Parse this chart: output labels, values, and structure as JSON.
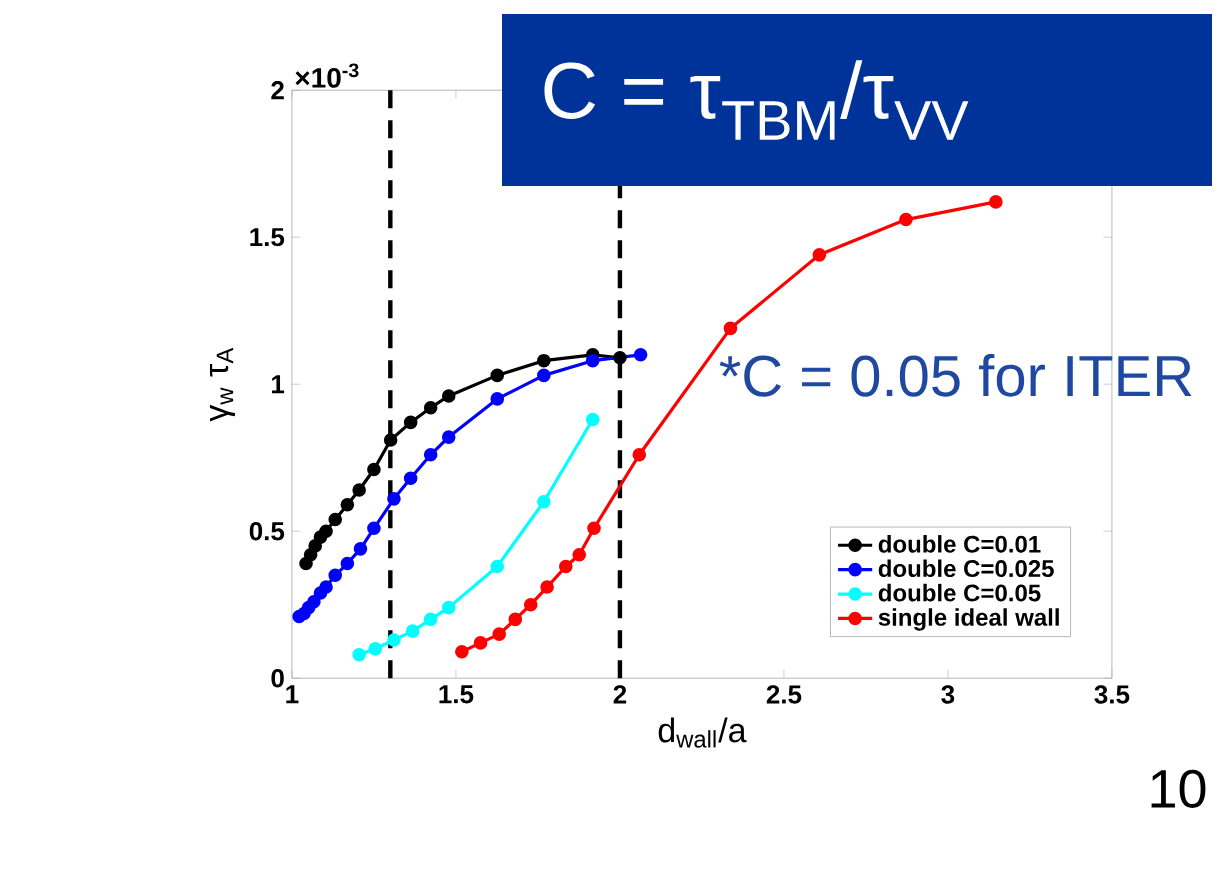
{
  "chart_data": {
    "type": "line",
    "title": "C = τ$_{TBM}$/τ$_{VV}$",
    "xlabel": "d$_{wall}$/a",
    "ylabel": "γ$_{w}$ τ$_{A}$",
    "annotations": [
      "×10$^{-3}$",
      "*C = 0.05 for ITER",
      "10"
    ],
    "xlim": [
      1,
      3.5
    ],
    "xticks": [
      1,
      1.5,
      2,
      2.5,
      3,
      3.5
    ],
    "ylim": [
      0,
      2
    ],
    "yticks": [
      0,
      0.5,
      1,
      1.5,
      2
    ],
    "grid": false,
    "legend": "bottom right",
    "marker": "circle",
    "line_style": "solid",
    "ref_lines": [
      {
        "axis": "x",
        "value": 1.3,
        "color": "#000000",
        "line_style": "dashed"
      },
      {
        "axis": "x",
        "value": 2,
        "color": "#000000",
        "line_style": "dashed"
      }
    ],
    "series": [
      {
        "name": "double C=0.01",
        "color": "#000000",
        "x": [
          1.043,
          1.057,
          1.071,
          1.087,
          1.104,
          1.132,
          1.169,
          1.205,
          1.25,
          1.301,
          1.362,
          1.423,
          1.478,
          1.626,
          1.768,
          1.917,
          2.0
        ],
        "values": [
          0.39,
          0.42,
          0.45,
          0.48,
          0.5,
          0.54,
          0.59,
          0.64,
          0.71,
          0.81,
          0.87,
          0.92,
          0.96,
          1.03,
          1.08,
          1.1,
          1.09
        ]
      },
      {
        "name": "double C=0.025",
        "color": "#0000ff",
        "x": [
          1.022,
          1.037,
          1.051,
          1.067,
          1.087,
          1.104,
          1.132,
          1.169,
          1.209,
          1.25,
          1.311,
          1.362,
          1.423,
          1.478,
          1.626,
          1.768,
          1.917,
          2.063
        ],
        "values": [
          0.21,
          0.22,
          0.24,
          0.26,
          0.29,
          0.31,
          0.35,
          0.39,
          0.44,
          0.51,
          0.61,
          0.68,
          0.76,
          0.82,
          0.95,
          1.03,
          1.08,
          1.1
        ]
      },
      {
        "name": "double C=0.05",
        "color": "#00ffff",
        "x": [
          1.205,
          1.254,
          1.311,
          1.368,
          1.423,
          1.478,
          1.626,
          1.768,
          1.917
        ],
        "values": [
          0.08,
          0.1,
          0.13,
          0.16,
          0.2,
          0.24,
          0.38,
          0.6,
          0.88
        ]
      },
      {
        "name": "single ideal wall",
        "color": "#ff0000",
        "x": [
          1.518,
          1.575,
          1.632,
          1.681,
          1.728,
          1.778,
          1.835,
          1.876,
          1.921,
          2.059,
          2.337,
          2.608,
          2.872,
          3.146
        ],
        "values": [
          0.09,
          0.12,
          0.15,
          0.2,
          0.25,
          0.31,
          0.38,
          0.42,
          0.51,
          0.76,
          1.19,
          1.44,
          1.56,
          1.62
        ]
      }
    ]
  }
}
